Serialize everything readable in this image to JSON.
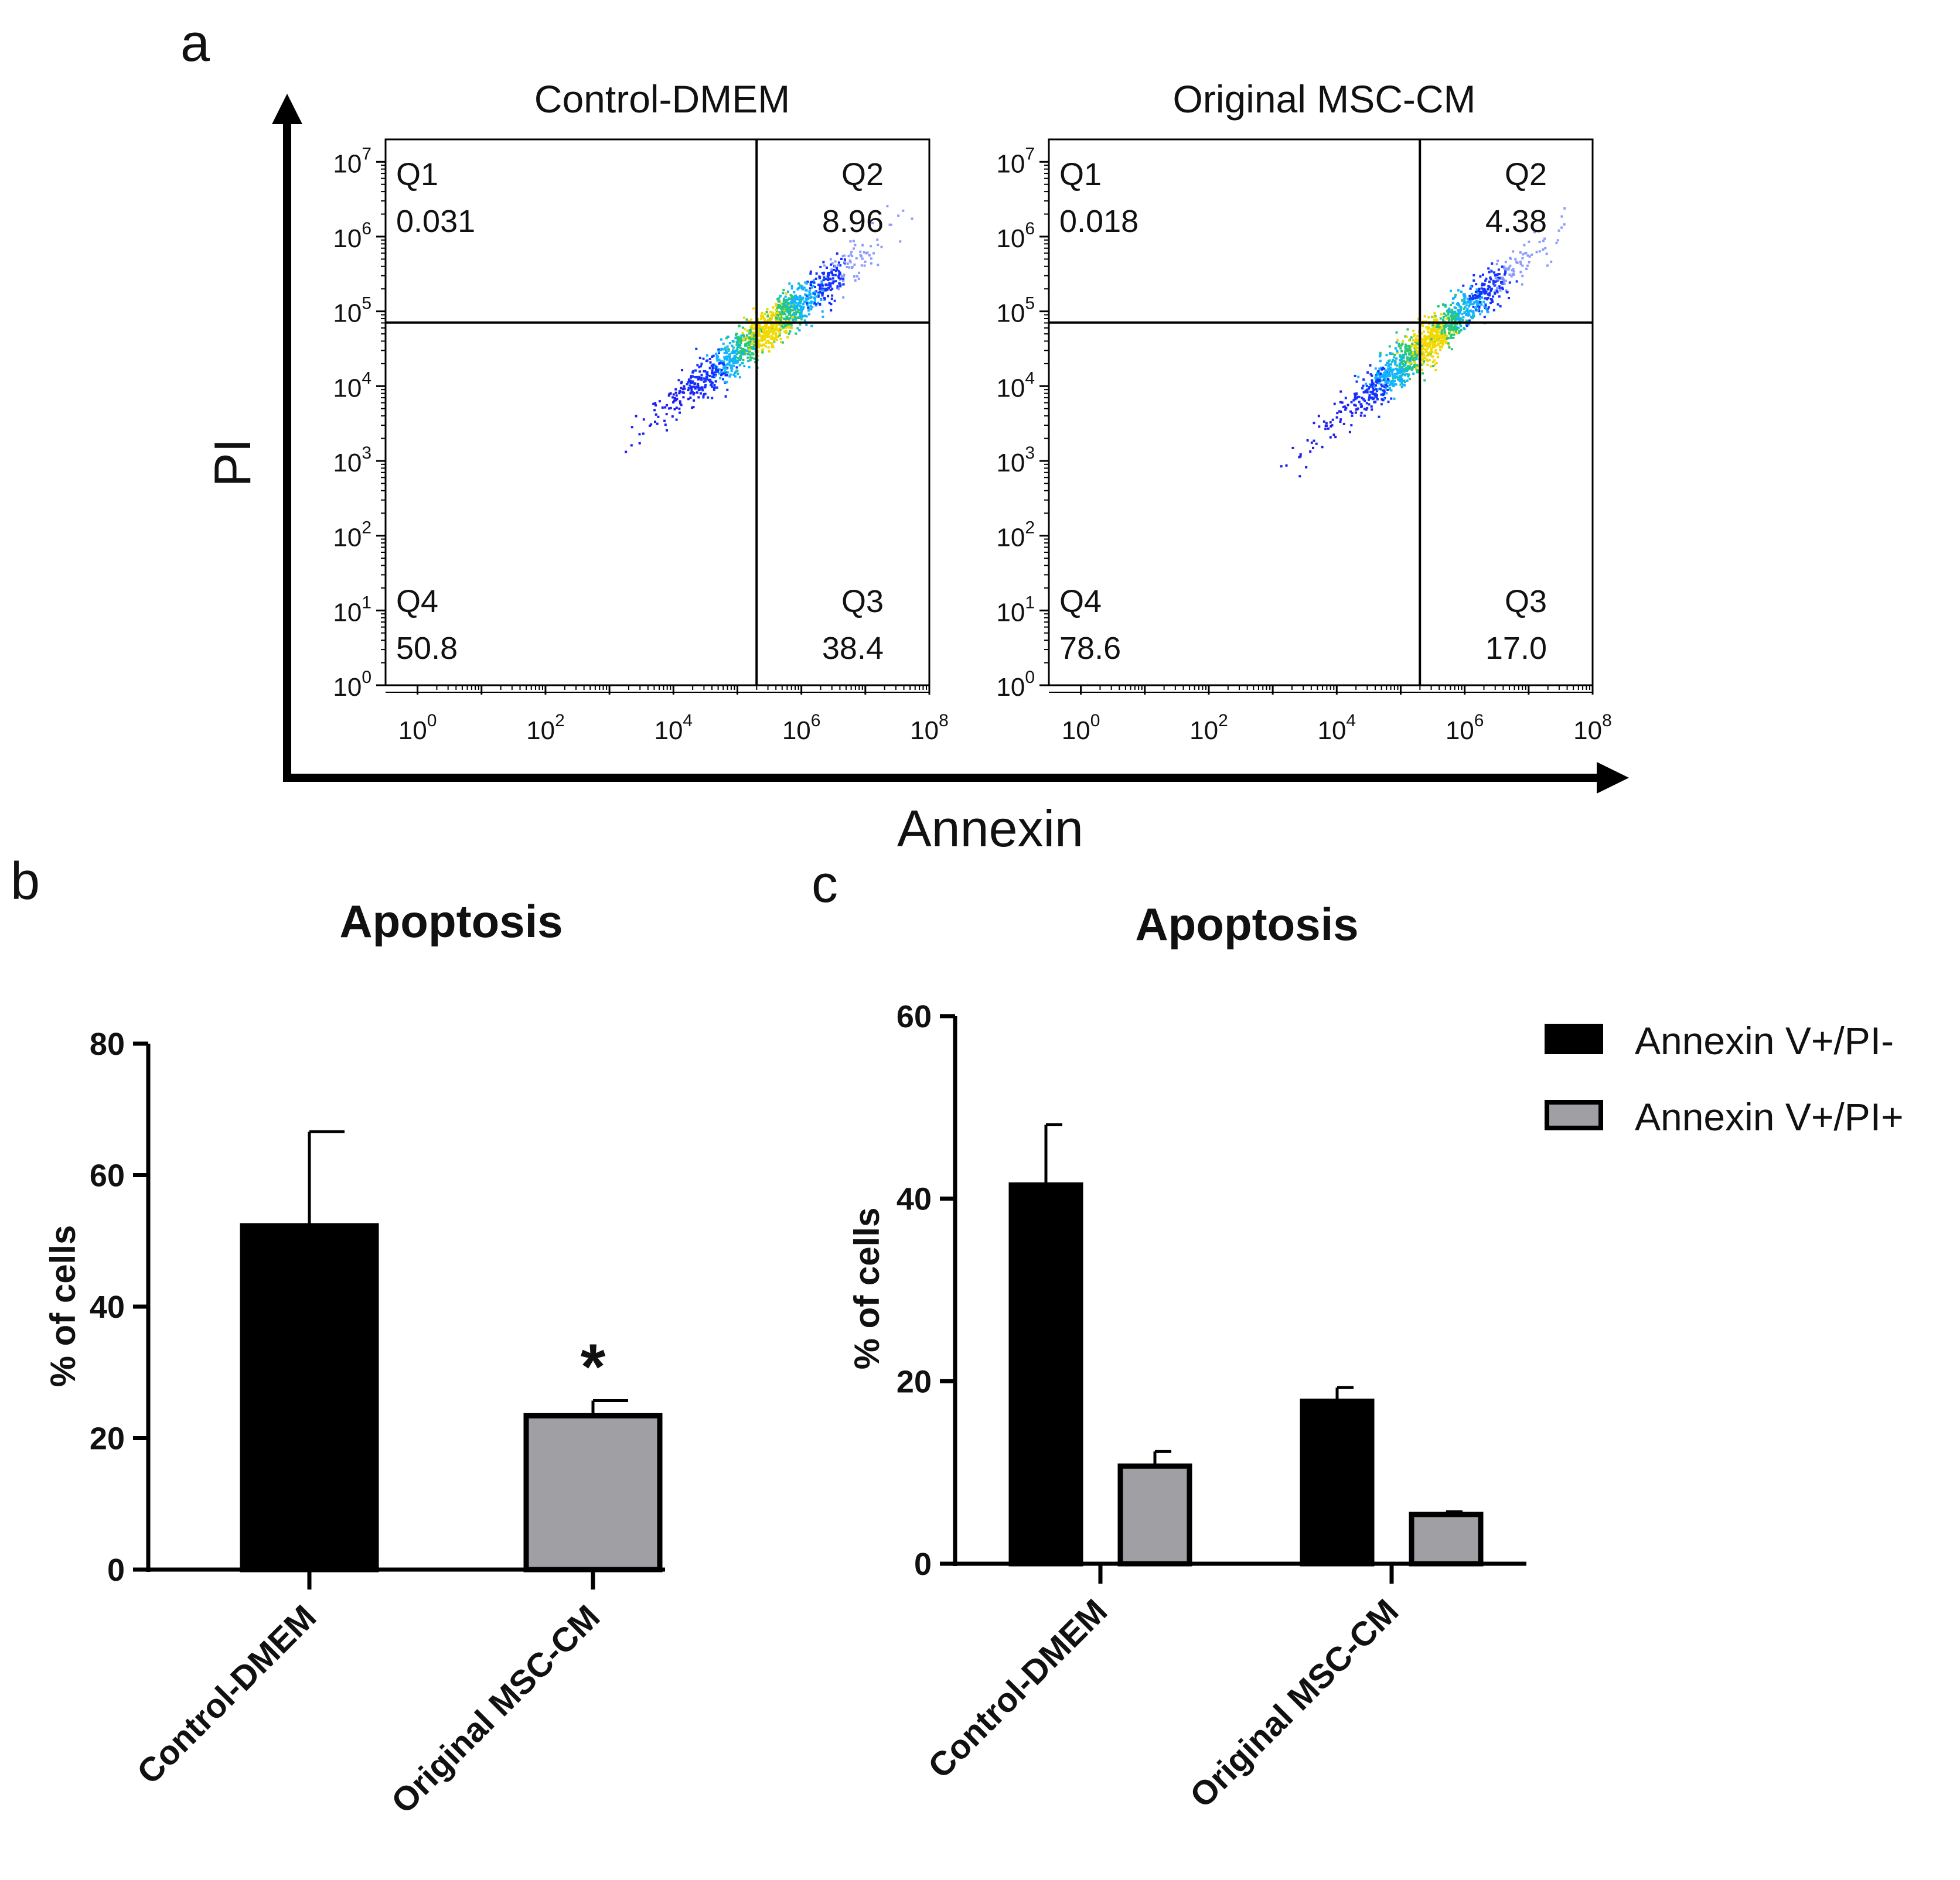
{
  "panels": {
    "a": "a",
    "b": "b",
    "c": "c"
  },
  "chart_data": [
    {
      "type": "scatter",
      "title": "Control-DMEM",
      "xlabel": "Annexin",
      "ylabel": "PI",
      "x_scale": "log10",
      "y_scale": "log10",
      "xlim_log10": [
        -0.5,
        8
      ],
      "ylim_log10": [
        0,
        7.3
      ],
      "x_ticks": [
        "10^0",
        "10^2",
        "10^4",
        "10^6",
        "10^8"
      ],
      "y_ticks": [
        "10^0",
        "10^1",
        "10^2",
        "10^3",
        "10^4",
        "10^5",
        "10^6",
        "10^7"
      ],
      "gate_log10": {
        "x": 5.3,
        "y": 4.85
      },
      "quadrants": [
        {
          "name": "Q1",
          "value": "0.031",
          "corner": "top-left"
        },
        {
          "name": "Q2",
          "value": "8.96",
          "corner": "top-right"
        },
        {
          "name": "Q3",
          "value": "38.4",
          "corner": "bottom-right"
        },
        {
          "name": "Q4",
          "value": "50.8",
          "corner": "bottom-left"
        }
      ],
      "population_log10": {
        "x_range": [
          3.3,
          7.6
        ],
        "y_range": [
          3.3,
          6.2
        ]
      }
    },
    {
      "type": "scatter",
      "title": "Original MSC-CM",
      "xlabel": "Annexin",
      "ylabel": "PI",
      "x_scale": "log10",
      "y_scale": "log10",
      "xlim_log10": [
        -0.5,
        8
      ],
      "ylim_log10": [
        0,
        7.3
      ],
      "x_ticks": [
        "10^0",
        "10^2",
        "10^4",
        "10^6",
        "10^8"
      ],
      "y_ticks": [
        "10^0",
        "10^1",
        "10^2",
        "10^3",
        "10^4",
        "10^5",
        "10^6",
        "10^7"
      ],
      "gate_log10": {
        "x": 5.3,
        "y": 4.85
      },
      "quadrants": [
        {
          "name": "Q1",
          "value": "0.018",
          "corner": "top-left"
        },
        {
          "name": "Q2",
          "value": "4.38",
          "corner": "top-right"
        },
        {
          "name": "Q3",
          "value": "17.0",
          "corner": "bottom-right"
        },
        {
          "name": "Q4",
          "value": "78.6",
          "corner": "bottom-left"
        }
      ],
      "population_log10": {
        "x_range": [
          3.3,
          7.6
        ],
        "y_range": [
          3.0,
          6.2
        ]
      }
    },
    {
      "type": "bar",
      "title": "Apoptosis",
      "ylabel": "% of cells",
      "xlabel": "",
      "ylim": [
        0,
        80
      ],
      "y_ticks": [
        0,
        20,
        40,
        60,
        80
      ],
      "categories": [
        "Control-DMEM",
        "Original MSC-CM"
      ],
      "values": [
        52.3,
        23.4
      ],
      "errors": [
        14.3,
        2.3
      ],
      "colors": [
        "#000000",
        "#a0a0a4"
      ],
      "significance": [
        "",
        "*"
      ]
    },
    {
      "type": "bar",
      "title": "Apoptosis",
      "ylabel": "% of cells",
      "xlabel": "",
      "ylim": [
        0,
        60
      ],
      "y_ticks": [
        0,
        20,
        40,
        60
      ],
      "categories": [
        "Control-DMEM",
        "Original MSC-CM"
      ],
      "series": [
        {
          "name": "Annexin V+/PI-",
          "color": "#000000",
          "values": [
            41.5,
            17.8
          ],
          "errors": [
            6.6,
            1.5
          ]
        },
        {
          "name": "Annexin V+/PI+",
          "color": "#a0a0a4",
          "values": [
            10.7,
            5.4
          ],
          "errors": [
            1.6,
            0.3
          ]
        }
      ],
      "legend_position": "top-right"
    }
  ]
}
